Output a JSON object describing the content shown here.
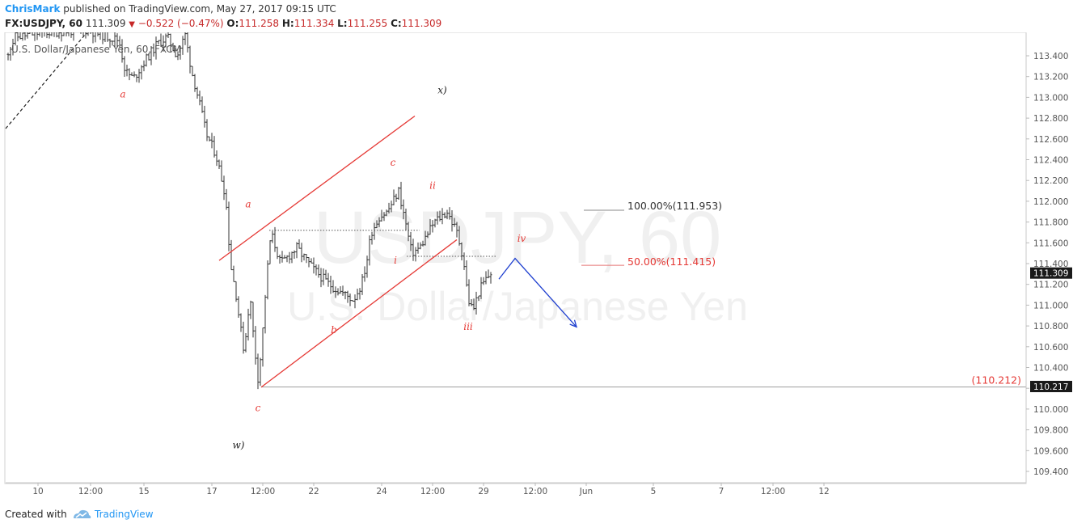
{
  "header": {
    "author": "ChrisMark",
    "published_text": "published on TradingView.com, May 27, 2017 09:15 UTC",
    "symbol": "FX:USDJPY, 60",
    "last": "111.309",
    "change": "−0.522 (−0.47%)",
    "o_label": "O:",
    "o_value": "111.258",
    "h_label": "H:",
    "h_value": "111.334",
    "l_label": "L:",
    "l_value": "111.255",
    "c_label": "C:",
    "c_value": "111.309"
  },
  "footer": {
    "created_with": "Created with",
    "brand": "TradingView"
  },
  "colors": {
    "candles": "#333333",
    "channel": "#e53935",
    "wave_labels": "#e53935",
    "projection_arrow": "#1e3fcf",
    "price_badge": "#1a1a1a",
    "axis_text": "#555555"
  },
  "chart_data": {
    "type": "ohlc",
    "legend_text": "U.S. Dollar/Japanese Yen, 60, FXCM",
    "watermark": {
      "symbol": "USDJPY, 60",
      "name": "U.S. Dollar/Japanese Yen"
    },
    "ylim": [
      109.2,
      113.6
    ],
    "xlim": [
      0,
      1015
    ],
    "y_ticks": [
      "113.400",
      "113.200",
      "113.000",
      "112.800",
      "112.600",
      "112.400",
      "112.200",
      "112.000",
      "111.800",
      "111.600",
      "111.400",
      "111.200",
      "111.000",
      "110.800",
      "110.600",
      "110.400",
      "110.200",
      "110.000",
      "109.800",
      "109.600",
      "109.400"
    ],
    "x_ticks": [
      {
        "x": 30,
        "label": "10"
      },
      {
        "x": 95,
        "label": "12:00"
      },
      {
        "x": 161,
        "label": "15"
      },
      {
        "x": 245,
        "label": "17"
      },
      {
        "x": 308,
        "label": "12:00"
      },
      {
        "x": 371,
        "label": "22"
      },
      {
        "x": 455,
        "label": "24"
      },
      {
        "x": 518,
        "label": "12:00"
      },
      {
        "x": 581,
        "label": "29"
      },
      {
        "x": 645,
        "label": "12:00"
      },
      {
        "x": 708,
        "label": "Jun"
      },
      {
        "x": 791,
        "label": "5"
      },
      {
        "x": 875,
        "label": "7"
      },
      {
        "x": 939,
        "label": "12:00"
      },
      {
        "x": 1002,
        "label": "12"
      }
    ],
    "price_path": [
      [
        0,
        113.4
      ],
      [
        12,
        113.58
      ],
      [
        40,
        113.62
      ],
      [
        100,
        113.65
      ],
      [
        140,
        113.55
      ],
      [
        148,
        113.25
      ],
      [
        158,
        113.18
      ],
      [
        172,
        113.35
      ],
      [
        188,
        113.52
      ],
      [
        200,
        113.58
      ],
      [
        212,
        113.4
      ],
      [
        222,
        113.6
      ],
      [
        230,
        113.25
      ],
      [
        238,
        113.0
      ],
      [
        248,
        112.65
      ],
      [
        260,
        112.45
      ],
      [
        272,
        112.05
      ],
      [
        278,
        111.4
      ],
      [
        285,
        111.1
      ],
      [
        290,
        110.8
      ],
      [
        295,
        110.55
      ],
      [
        302,
        111.1
      ],
      [
        307,
        110.65
      ],
      [
        312,
        110.3
      ],
      [
        316,
        110.55
      ],
      [
        322,
        111.2
      ],
      [
        328,
        111.7
      ],
      [
        340,
        111.4
      ],
      [
        360,
        111.55
      ],
      [
        380,
        111.35
      ],
      [
        400,
        111.2
      ],
      [
        420,
        111.1
      ],
      [
        430,
        111.05
      ],
      [
        440,
        111.2
      ],
      [
        446,
        111.4
      ],
      [
        452,
        111.7
      ],
      [
        462,
        111.85
      ],
      [
        472,
        111.9
      ],
      [
        486,
        112.1
      ],
      [
        493,
        111.85
      ],
      [
        502,
        111.5
      ],
      [
        512,
        111.55
      ],
      [
        530,
        111.8
      ],
      [
        546,
        111.9
      ],
      [
        558,
        111.7
      ],
      [
        566,
        111.45
      ],
      [
        572,
        111.05
      ],
      [
        578,
        110.95
      ],
      [
        586,
        111.15
      ],
      [
        594,
        111.25
      ],
      [
        600,
        111.31
      ]
    ],
    "annotations": [
      {
        "text": "a",
        "x": 145,
        "y": 113.0
      },
      {
        "text": "x)",
        "x": 540,
        "y": 113.04
      },
      {
        "text": "c",
        "x": 479,
        "y": 112.34
      },
      {
        "text": "ii",
        "x": 528,
        "y": 112.12
      },
      {
        "text": "a",
        "x": 300,
        "y": 111.94
      },
      {
        "text": "iv",
        "x": 638,
        "y": 111.61
      },
      {
        "text": "i",
        "x": 482,
        "y": 111.4
      },
      {
        "text": "iii",
        "x": 572,
        "y": 110.76
      },
      {
        "text": "b",
        "x": 406,
        "y": 110.73
      },
      {
        "text": "c",
        "x": 312,
        "y": 109.98
      },
      {
        "text": "w)",
        "x": 288,
        "y": 109.62
      }
    ],
    "fibonacci": [
      {
        "level": "100.00%",
        "price": 111.953,
        "label": "100.00%(111.953)"
      },
      {
        "level": "50.00%",
        "price": 111.415,
        "label": "50.00%(111.415)"
      }
    ],
    "support_line": {
      "price": 110.212,
      "label": "(110.212)"
    },
    "price_badges": [
      {
        "price": 111.309,
        "label": "111.309"
      },
      {
        "price": 110.217,
        "label": "110.217"
      }
    ],
    "channel": {
      "upper": [
        [
          264,
          111.43
        ],
        [
          506,
          112.82
        ]
      ],
      "lower": [
        [
          316,
          110.21
        ],
        [
          558,
          111.63
        ]
      ]
    },
    "dashed_trend": [
      [
        0,
        112.7
      ],
      [
        100,
        113.62
      ]
    ],
    "dotted_levels": [
      {
        "from": 326,
        "to": 512,
        "price": 111.72
      },
      {
        "from": 496,
        "to": 606,
        "price": 111.47
      }
    ],
    "projection": [
      [
        610,
        111.25
      ],
      [
        630,
        111.45
      ],
      [
        706,
        110.79
      ]
    ]
  }
}
